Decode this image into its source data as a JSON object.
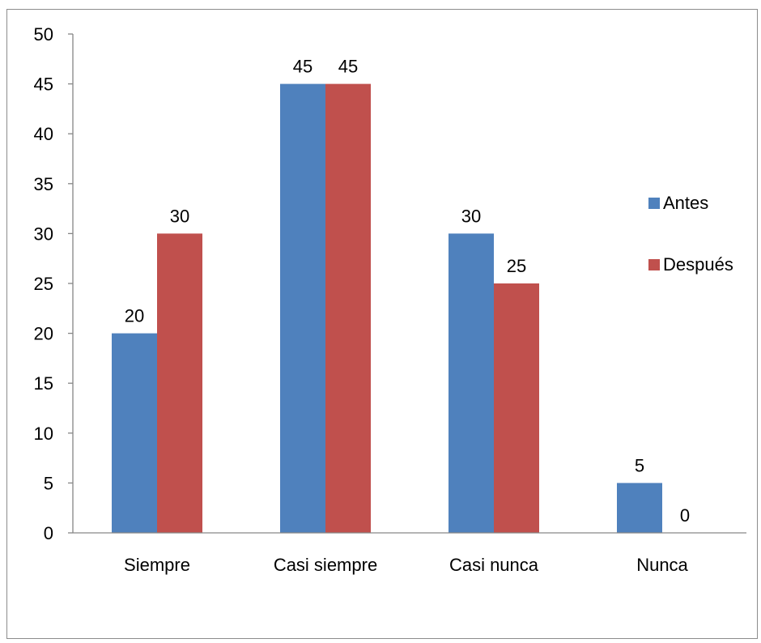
{
  "chart_data": {
    "type": "bar",
    "categories": [
      "Siempre",
      "Casi siempre",
      "Casi nunca",
      "Nunca"
    ],
    "series": [
      {
        "name": "Antes",
        "values": [
          20,
          45,
          30,
          5
        ],
        "color": "#4f81bd"
      },
      {
        "name": "Después",
        "values": [
          30,
          45,
          25,
          0
        ],
        "color": "#c0504d"
      }
    ],
    "ylim": [
      0,
      50
    ],
    "yticks": [
      "0",
      "5",
      "10",
      "15",
      "20",
      "25",
      "30",
      "35",
      "40",
      "45",
      "50"
    ],
    "xlabel": "",
    "ylabel": "",
    "title": "",
    "grid": false,
    "legend_position": "right",
    "data_labels": true
  }
}
